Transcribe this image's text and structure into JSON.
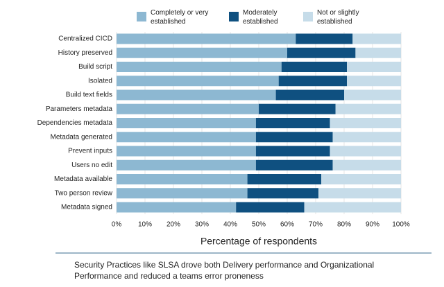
{
  "chart_data": {
    "type": "stacked-barh",
    "categories": [
      "Centralized CICD",
      "History preserved",
      "Build script",
      "Isolated",
      "Build text fields",
      "Parameters metadata",
      "Dependencies metadata",
      "Metadata generated",
      "Prevent inputs",
      "Users no edit",
      "Metadata available",
      "Two person review",
      "Metadata signed"
    ],
    "series": [
      {
        "name": "Completely or very established",
        "color": "#8db8d2",
        "values": [
          63,
          60,
          58,
          57,
          56,
          50,
          49,
          49,
          49,
          49,
          46,
          46,
          42
        ]
      },
      {
        "name": "Moderately established",
        "color": "#0f5080",
        "values": [
          20,
          24,
          23,
          24,
          24,
          27,
          26,
          27,
          26,
          27,
          26,
          25,
          24
        ]
      },
      {
        "name": "Not or slightly established",
        "color": "#c6dce9",
        "values": [
          17,
          16,
          19,
          19,
          20,
          23,
          25,
          24,
          25,
          24,
          28,
          29,
          34
        ]
      }
    ],
    "xlabel": "Percentage of respondents",
    "xlim": [
      0,
      100
    ],
    "xticks": [
      {
        "value": 0,
        "label": "0%"
      },
      {
        "value": 10,
        "label": "10%"
      },
      {
        "value": 20,
        "label": "20%"
      },
      {
        "value": 30,
        "label": "30%"
      },
      {
        "value": 40,
        "label": "40%"
      },
      {
        "value": 50,
        "label": "50%"
      },
      {
        "value": 60,
        "label": "60%"
      },
      {
        "value": 70,
        "label": "70%"
      },
      {
        "value": 80,
        "label": "80%"
      },
      {
        "value": 90,
        "label": "90%"
      },
      {
        "value": 100,
        "label": "100%"
      }
    ]
  },
  "caption": "Security Practices like SLSA drove both Delivery performance and Organizational Performance and reduced a teams error proneness"
}
